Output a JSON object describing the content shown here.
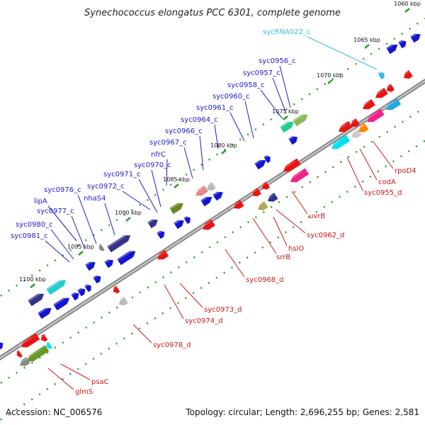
{
  "title": "Synechococcus elongatus PCC 6301, complete genome",
  "accession": "Accession: NC_006576",
  "summary": "Topology: circular; Length: 2,696,255 bp; Genes: 2,581",
  "colors": {
    "backbone": "#8c8c8c",
    "dots": "#2e9e2e",
    "forward_label": "#1c1cc8",
    "reverse_label": "#d01818",
    "rna_label": "#33bbdd"
  },
  "ticks": [
    "1060 kbp",
    "1065 kbp",
    "1070 kbp",
    "1075 kbp",
    "1080 kbp",
    "1085 kbp",
    "1090 kbp",
    "1095 kbp",
    "1100 kbp"
  ],
  "forward_labels": [
    "syc0956_c",
    "syc0957_c",
    "syc0958_c",
    "syc0960_c",
    "syc0961_c",
    "syc0964_c",
    "syc0966_c",
    "syc0967_c",
    "nfrC",
    "syc0970_c",
    "syc0971_c",
    "syc0972_c",
    "nhaS4",
    "syc0976_c",
    "lipA",
    "syc0977_c",
    "syc0980_c",
    "syc0981_c"
  ],
  "reverse_labels": [
    "rpoD4",
    "codA",
    "syc0955_d",
    "uvrB",
    "syc0962_d",
    "hslO",
    "srrB",
    "syc0968_d",
    "syc0973_d",
    "syc0974_d",
    "syc0978_d",
    "psaC",
    "glmS"
  ],
  "rna_labels": [
    "sycRNA022_c"
  ]
}
